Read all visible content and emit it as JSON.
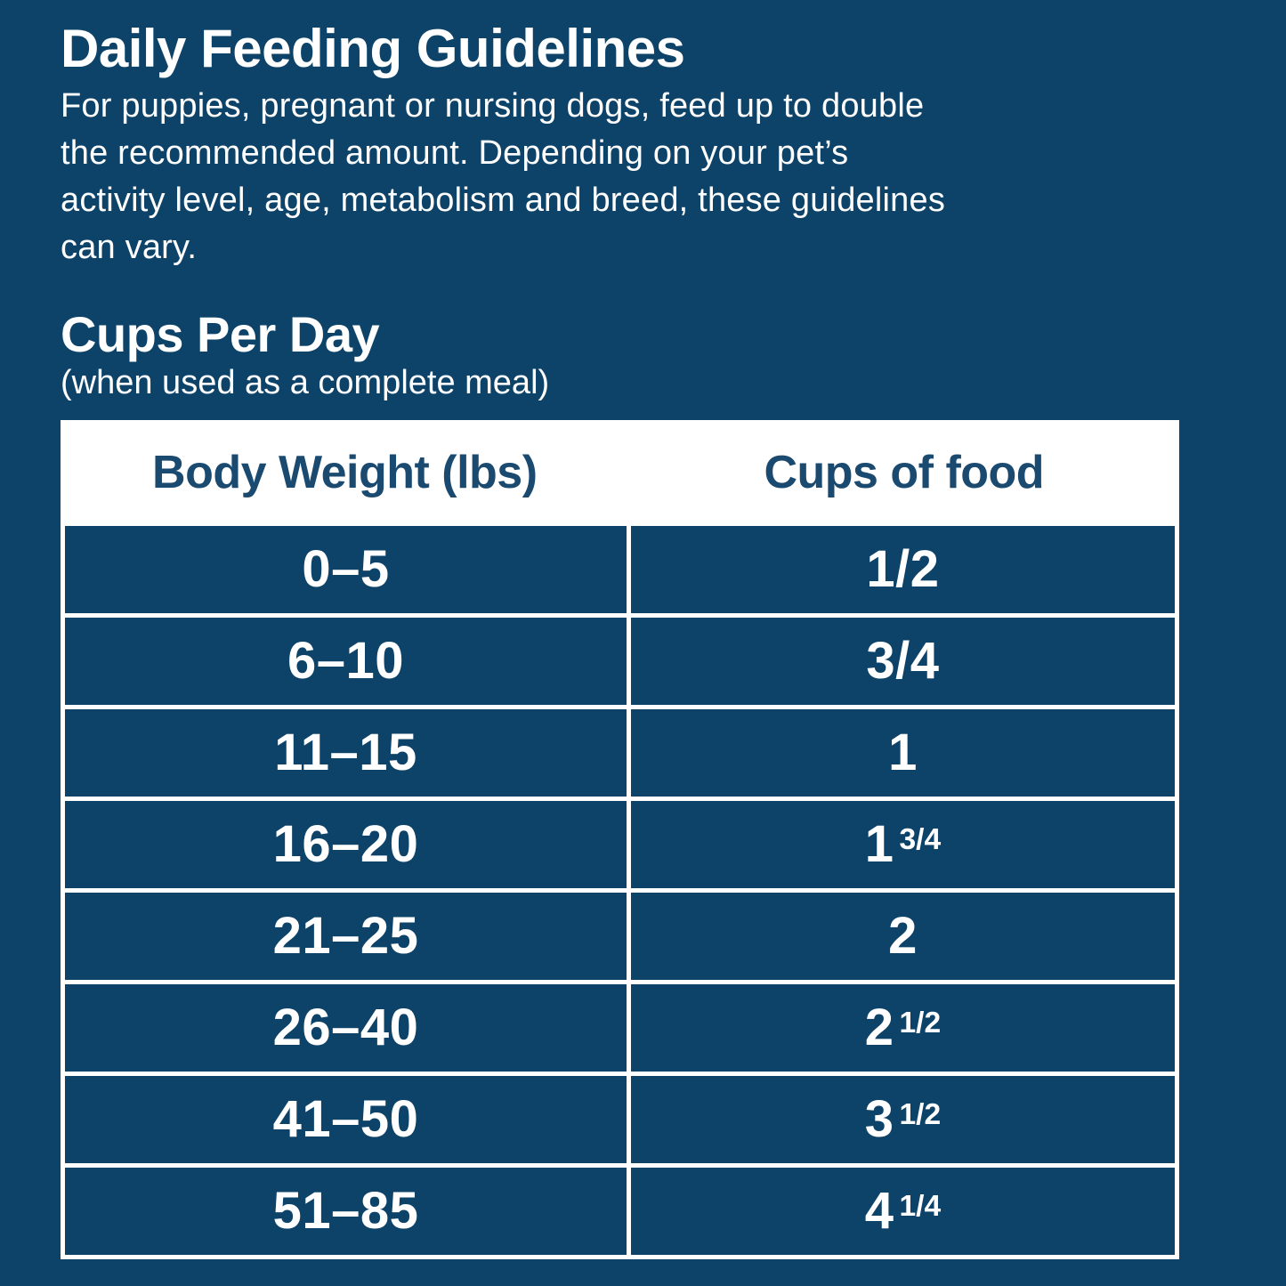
{
  "page": {
    "colors": {
      "background": "#0e4369",
      "table_border": "#ffffff",
      "header_text": "#1b4a70",
      "body_text": "#ffffff"
    },
    "title": "Daily Feeding Guidelines",
    "description": "For puppies, pregnant or nursing dogs, feed up to double\nthe recommended amount. Depending on your pet’s\nactivity level, age, metabolism and breed, these guidelines\ncan vary."
  },
  "section": {
    "title": "Cups Per Day",
    "subtitle": "(when used as a complete meal)"
  },
  "table": {
    "columns": [
      "Body Weight (lbs)",
      "Cups of food"
    ],
    "rows": [
      {
        "weight": "0–5",
        "cups_main": "1/2",
        "cups_small": ""
      },
      {
        "weight": "6–10",
        "cups_main": "3/4",
        "cups_small": ""
      },
      {
        "weight": "11–15",
        "cups_main": "1",
        "cups_small": ""
      },
      {
        "weight": "16–20",
        "cups_main": "1",
        "cups_small": "3/4"
      },
      {
        "weight": "21–25",
        "cups_main": "2",
        "cups_small": ""
      },
      {
        "weight": "26–40",
        "cups_main": "2",
        "cups_small": "1/2"
      },
      {
        "weight": "41–50",
        "cups_main": "3",
        "cups_small": "1/2"
      },
      {
        "weight": "51–85",
        "cups_main": "4",
        "cups_small": "1/4"
      }
    ]
  }
}
